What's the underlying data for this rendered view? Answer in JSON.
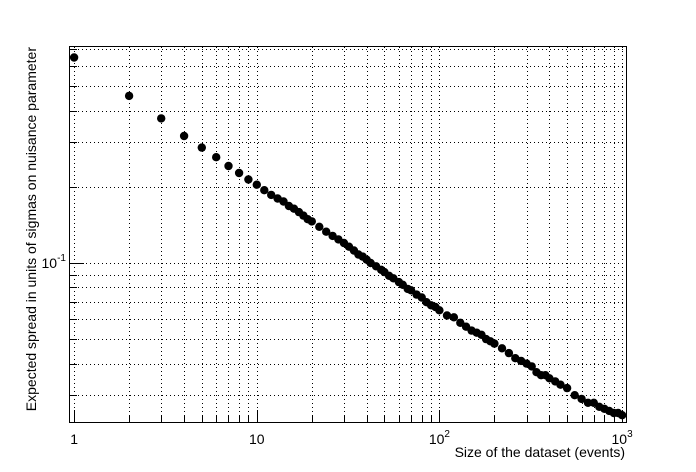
{
  "chart_data": {
    "type": "scatter",
    "title": "",
    "xlabel": "Size of the dataset (events)",
    "ylabel": "Expected spread in units of sigmas on nuisance parameter",
    "x_scale": "log",
    "y_scale": "log",
    "xlim": [
      0.95,
      1050
    ],
    "ylim": [
      0.0235,
      0.715
    ],
    "grid": true,
    "x_tick_labels": [
      {
        "value": 1,
        "base": "1",
        "exp": ""
      },
      {
        "value": 10,
        "base": "10",
        "exp": ""
      },
      {
        "value": 100,
        "base": "10",
        "exp": "2"
      },
      {
        "value": 1000,
        "base": "10",
        "exp": "3"
      }
    ],
    "y_tick_labels": [
      {
        "value": 0.1,
        "base": "10",
        "exp": "-1"
      }
    ],
    "marker_color": "#000000",
    "series": [
      {
        "points": [
          [
            1,
            0.65
          ],
          [
            2,
            0.458
          ],
          [
            3,
            0.373
          ],
          [
            4,
            0.318
          ],
          [
            5,
            0.286
          ],
          [
            6,
            0.262
          ],
          [
            7,
            0.242
          ],
          [
            8,
            0.227
          ],
          [
            9,
            0.214
          ],
          [
            10,
            0.204
          ],
          [
            11,
            0.194
          ],
          [
            12,
            0.186
          ],
          [
            13,
            0.18
          ],
          [
            14,
            0.175
          ],
          [
            15,
            0.168
          ],
          [
            16,
            0.164
          ],
          [
            17,
            0.159
          ],
          [
            18,
            0.154
          ],
          [
            19,
            0.149
          ],
          [
            20,
            0.146
          ],
          [
            22,
            0.139
          ],
          [
            24,
            0.133
          ],
          [
            26,
            0.128
          ],
          [
            28,
            0.124
          ],
          [
            30,
            0.12
          ],
          [
            32,
            0.116
          ],
          [
            34,
            0.112
          ],
          [
            36,
            0.108
          ],
          [
            38,
            0.106
          ],
          [
            40,
            0.103
          ],
          [
            42,
            0.1
          ],
          [
            45,
            0.097
          ],
          [
            48,
            0.094
          ],
          [
            50,
            0.092
          ],
          [
            53,
            0.089
          ],
          [
            56,
            0.087
          ],
          [
            60,
            0.084
          ],
          [
            63,
            0.082
          ],
          [
            67,
            0.079
          ],
          [
            70,
            0.078
          ],
          [
            75,
            0.075
          ],
          [
            80,
            0.073
          ],
          [
            85,
            0.07
          ],
          [
            90,
            0.068
          ],
          [
            95,
            0.067
          ],
          [
            100,
            0.065
          ],
          [
            110,
            0.062
          ],
          [
            120,
            0.061
          ],
          [
            130,
            0.058
          ],
          [
            140,
            0.056
          ],
          [
            150,
            0.054
          ],
          [
            160,
            0.053
          ],
          [
            170,
            0.052
          ],
          [
            180,
            0.05
          ],
          [
            190,
            0.049
          ],
          [
            200,
            0.048
          ],
          [
            220,
            0.046
          ],
          [
            240,
            0.044
          ],
          [
            260,
            0.042
          ],
          [
            280,
            0.041
          ],
          [
            300,
            0.04
          ],
          [
            320,
            0.039
          ],
          [
            340,
            0.037
          ],
          [
            360,
            0.036
          ],
          [
            380,
            0.036
          ],
          [
            400,
            0.035
          ],
          [
            430,
            0.034
          ],
          [
            460,
            0.033
          ],
          [
            500,
            0.032
          ],
          [
            550,
            0.03
          ],
          [
            600,
            0.029
          ],
          [
            650,
            0.028
          ],
          [
            700,
            0.028
          ],
          [
            750,
            0.027
          ],
          [
            800,
            0.0265
          ],
          [
            850,
            0.026
          ],
          [
            900,
            0.0255
          ],
          [
            950,
            0.0255
          ],
          [
            1000,
            0.025
          ]
        ]
      }
    ]
  }
}
